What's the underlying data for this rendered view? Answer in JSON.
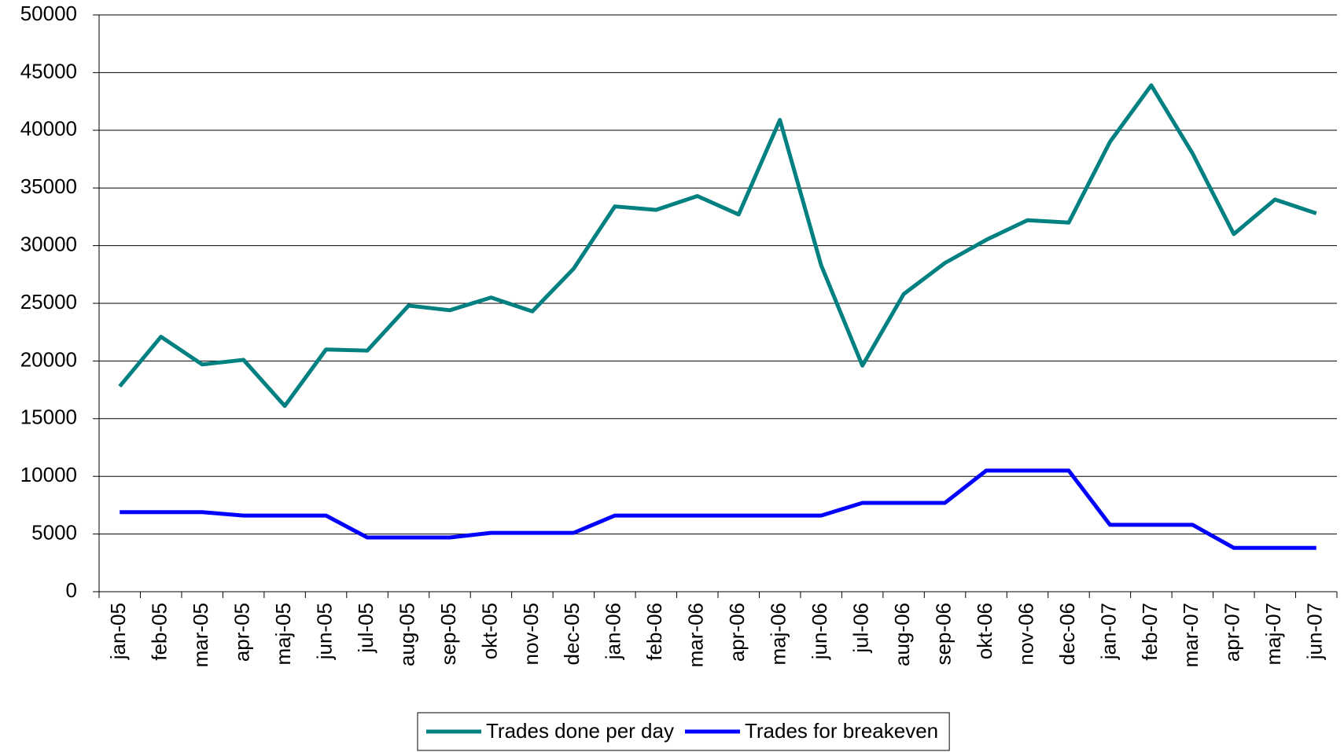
{
  "chart_data": {
    "type": "line",
    "categories": [
      "jan-05",
      "feb-05",
      "mar-05",
      "apr-05",
      "maj-05",
      "jun-05",
      "jul-05",
      "aug-05",
      "sep-05",
      "okt-05",
      "nov-05",
      "dec-05",
      "jan-06",
      "feb-06",
      "mar-06",
      "apr-06",
      "maj-06",
      "jun-06",
      "jul-06",
      "aug-06",
      "sep-06",
      "okt-06",
      "nov-06",
      "dec-06",
      "jan-07",
      "feb-07",
      "mar-07",
      "apr-07",
      "maj-07",
      "jun-07"
    ],
    "series": [
      {
        "name": "Trades done per day",
        "color": "#008080",
        "values": [
          17800,
          22100,
          19700,
          20100,
          16100,
          21000,
          20900,
          24800,
          24400,
          25500,
          24300,
          28000,
          33400,
          33100,
          34300,
          32700,
          40900,
          28300,
          19600,
          25800,
          28500,
          30500,
          32200,
          32000,
          39000,
          43900,
          38000,
          31000,
          34000,
          32800
        ]
      },
      {
        "name": "Trades for breakeven",
        "color": "#0000ff",
        "values": [
          6900,
          6900,
          6900,
          6600,
          6600,
          6600,
          4700,
          4700,
          4700,
          5100,
          5100,
          5100,
          6600,
          6600,
          6600,
          6600,
          6600,
          6600,
          7700,
          7700,
          7700,
          10500,
          10500,
          10500,
          5800,
          5800,
          5800,
          3800,
          3800,
          3800
        ]
      }
    ],
    "ylim": [
      0,
      50000
    ],
    "yticks": [
      0,
      5000,
      10000,
      15000,
      20000,
      25000,
      30000,
      35000,
      40000,
      45000,
      50000
    ],
    "grid": true,
    "legend": "bottom"
  }
}
